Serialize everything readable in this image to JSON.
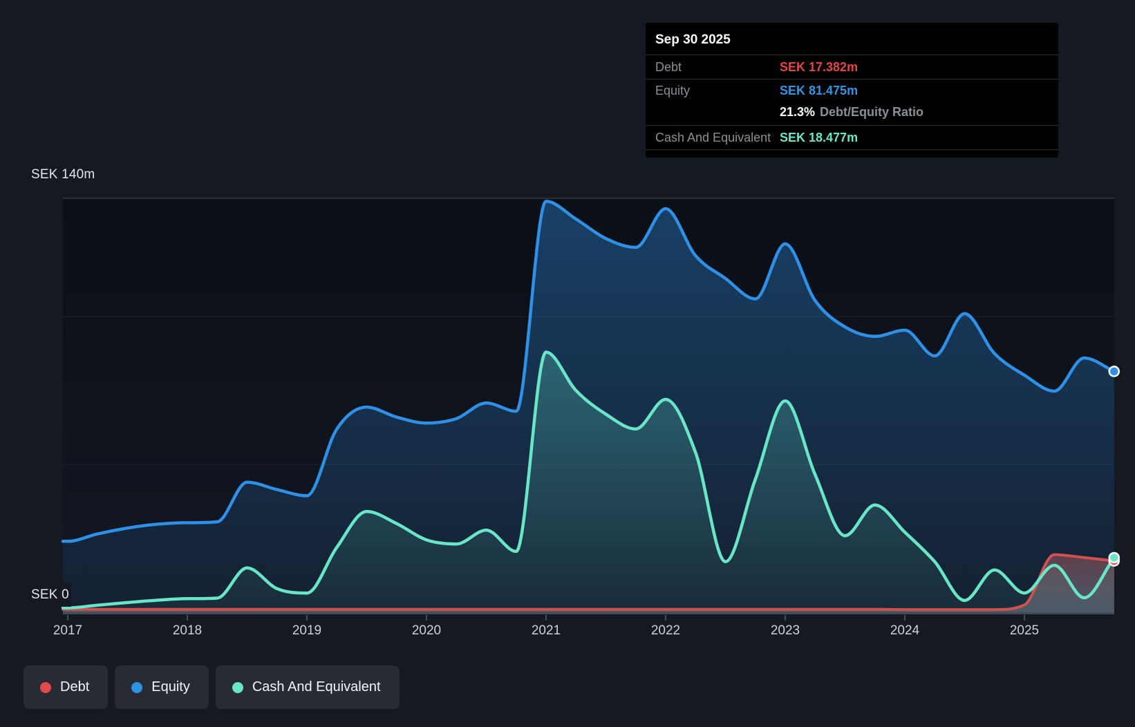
{
  "colors": {
    "page_bg": "#151a22",
    "debt": "#d15150",
    "equity": "#2e90e6",
    "cash": "#69e6c8",
    "debt_value": "#e8433e",
    "equity_value": "#2e97e5",
    "cash_value": "#68e8c9",
    "grid": "rgba(255,255,255,0.07)",
    "grid_top": "rgba(255,255,255,0.16)",
    "axis": "#454b54",
    "tick": "#565c66"
  },
  "tooltip": {
    "date": "Sep 30 2025",
    "debt_label": "Debt",
    "debt_value": "SEK 17.382m",
    "equity_label": "Equity",
    "equity_value": "SEK 81.475m",
    "ratio_value": "21.3%",
    "ratio_label": "Debt/Equity Ratio",
    "cash_label": "Cash And Equivalent",
    "cash_value": "SEK 18.477m"
  },
  "y_axis": {
    "top_label": "SEK 140m",
    "zero_label": "SEK 0"
  },
  "legend": [
    {
      "label": "Debt",
      "color": "#e4494a"
    },
    {
      "label": "Equity",
      "color": "#2b95e2"
    },
    {
      "label": "Cash And Equivalent",
      "color": "#69e6c8"
    }
  ],
  "chart_data": {
    "type": "area",
    "title": "Debt to Equity history",
    "x_ticks": [
      "2017",
      "2018",
      "2019",
      "2020",
      "2021",
      "2022",
      "2023",
      "2024",
      "2025"
    ],
    "ylim": [
      0,
      140
    ],
    "gridlines": [
      50,
      100,
      140
    ],
    "x": [
      2017.0,
      2017.25,
      2017.5,
      2017.75,
      2018.0,
      2018.25,
      2018.5,
      2018.75,
      2019.0,
      2019.25,
      2019.5,
      2019.75,
      2020.0,
      2020.25,
      2020.5,
      2020.75,
      2021.0,
      2021.25,
      2021.5,
      2021.75,
      2022.0,
      2022.25,
      2022.5,
      2022.75,
      2023.0,
      2023.25,
      2023.5,
      2023.75,
      2024.0,
      2024.25,
      2024.5,
      2024.75,
      2025.0,
      2025.25,
      2025.5,
      2025.75
    ],
    "series": [
      {
        "name": "Debt",
        "values": [
          1.0,
          1.0,
          1.0,
          1.0,
          1.0,
          1.0,
          1.0,
          1.0,
          1.0,
          1.0,
          1.0,
          1.0,
          1.0,
          1.0,
          1.0,
          1.0,
          1.0,
          1.0,
          1.0,
          1.0,
          1.0,
          1.0,
          1.0,
          1.0,
          1.0,
          1.0,
          1.0,
          1.0,
          0.9,
          0.9,
          0.9,
          0.9,
          2.5,
          19.5,
          18.5,
          17.382
        ]
      },
      {
        "name": "Equity",
        "values": [
          24,
          26.5,
          28.5,
          29.8,
          30.3,
          30.6,
          44,
          41.5,
          39.4,
          62,
          69.4,
          66,
          64,
          65.5,
          70.8,
          68,
          139,
          133,
          126.4,
          123.4,
          136.5,
          120.6,
          112.9,
          106,
          124.6,
          105.4,
          96.5,
          93.3,
          95.4,
          86.7,
          101,
          87.5,
          80.2,
          74.8,
          86,
          81.475
        ]
      },
      {
        "name": "Cash And Equivalent",
        "values": [
          1.5,
          2.4,
          3.3,
          4.1,
          4.6,
          4.8,
          15,
          8,
          6.5,
          22,
          34.1,
          30,
          24.5,
          23.1,
          27.8,
          20.6,
          88,
          75,
          67,
          62,
          72,
          54,
          17.1,
          45,
          71.5,
          46.5,
          25.9,
          36.3,
          27.1,
          17.1,
          4,
          14.3,
          6.5,
          15.9,
          4.9,
          18.477
        ]
      }
    ],
    "legend_position": "bottom-left",
    "grid": "horizontal-only"
  }
}
